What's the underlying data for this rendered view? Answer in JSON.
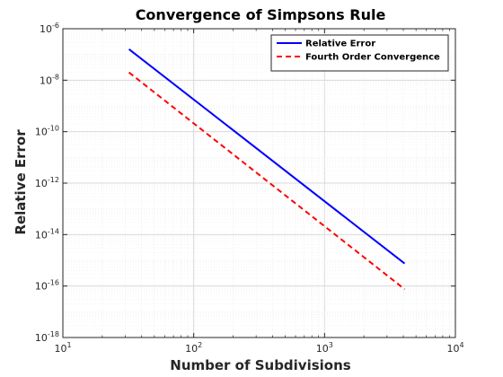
{
  "chart_data": {
    "type": "line",
    "title": "Convergence of Simpsons Rule",
    "xlabel": "Number of Subdivisions",
    "ylabel": "Relative Error",
    "xscale": "log",
    "yscale": "log",
    "xlim": [
      10,
      10000
    ],
    "ylim": [
      1e-18,
      1e-06
    ],
    "xticks": [
      {
        "base": "10",
        "exp": "1",
        "value": 10
      },
      {
        "base": "10",
        "exp": "2",
        "value": 100
      },
      {
        "base": "10",
        "exp": "3",
        "value": 1000
      },
      {
        "base": "10",
        "exp": "4",
        "value": 10000
      }
    ],
    "yticks": [
      {
        "base": "10",
        "exp": "-6",
        "value": 1e-06
      },
      {
        "base": "10",
        "exp": "-8",
        "value": 1e-08
      },
      {
        "base": "10",
        "exp": "-10",
        "value": 1e-10
      },
      {
        "base": "10",
        "exp": "-12",
        "value": 1e-12
      },
      {
        "base": "10",
        "exp": "-14",
        "value": 1e-14
      },
      {
        "base": "10",
        "exp": "-16",
        "value": 1e-16
      },
      {
        "base": "10",
        "exp": "-18",
        "value": 1e-18
      }
    ],
    "grid": true,
    "minor_grid": true,
    "legend_position": "top-right",
    "series": [
      {
        "name": "Relative Error",
        "color": "#0000ff",
        "style": "solid",
        "x": [
          32,
          4096
        ],
        "y": [
          1.6e-07,
          7.5e-16
        ]
      },
      {
        "name": "Fourth Order Convergence",
        "color": "#ff0000",
        "style": "dashed",
        "x": [
          32,
          4096
        ],
        "y": [
          2e-08,
          7.5e-17
        ]
      }
    ]
  }
}
